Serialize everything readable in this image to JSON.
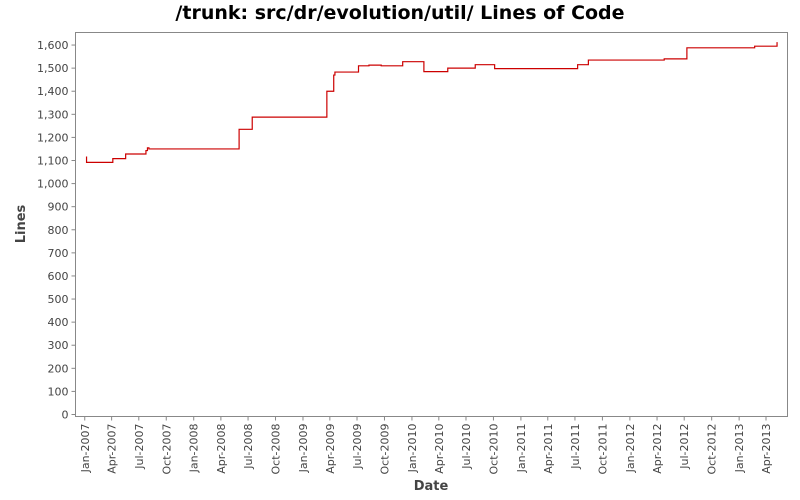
{
  "chart_data": {
    "type": "line",
    "title": "/trunk: src/dr/evolution/util/ Lines of Code",
    "xlabel": "Date",
    "ylabel": "Lines",
    "ylim": [
      0,
      1650
    ],
    "xlim": [
      "2006-12-01",
      "2013-06-12"
    ],
    "y_ticks": [
      0,
      100,
      200,
      300,
      400,
      500,
      600,
      700,
      800,
      900,
      1000,
      1100,
      1200,
      1300,
      1400,
      1500,
      1600
    ],
    "y_tick_labels": [
      "0",
      "100",
      "200",
      "300",
      "400",
      "500",
      "600",
      "700",
      "800",
      "900",
      "1,000",
      "1,100",
      "1,200",
      "1,300",
      "1,400",
      "1,500",
      "1,600"
    ],
    "x_ticks": [
      {
        "date": "2007-01-01",
        "label": "Jan-2007"
      },
      {
        "date": "2007-04-01",
        "label": "Apr-2007"
      },
      {
        "date": "2007-07-01",
        "label": "Jul-2007"
      },
      {
        "date": "2007-10-01",
        "label": "Oct-2007"
      },
      {
        "date": "2008-01-01",
        "label": "Jan-2008"
      },
      {
        "date": "2008-04-01",
        "label": "Apr-2008"
      },
      {
        "date": "2008-07-01",
        "label": "Jul-2008"
      },
      {
        "date": "2008-10-01",
        "label": "Oct-2008"
      },
      {
        "date": "2009-01-01",
        "label": "Jan-2009"
      },
      {
        "date": "2009-04-01",
        "label": "Apr-2009"
      },
      {
        "date": "2009-07-01",
        "label": "Jul-2009"
      },
      {
        "date": "2009-10-01",
        "label": "Oct-2009"
      },
      {
        "date": "2010-01-01",
        "label": "Jan-2010"
      },
      {
        "date": "2010-04-01",
        "label": "Apr-2010"
      },
      {
        "date": "2010-07-01",
        "label": "Jul-2010"
      },
      {
        "date": "2010-10-01",
        "label": "Oct-2010"
      },
      {
        "date": "2011-01-01",
        "label": "Jan-2011"
      },
      {
        "date": "2011-04-01",
        "label": "Apr-2011"
      },
      {
        "date": "2011-07-01",
        "label": "Jul-2011"
      },
      {
        "date": "2011-10-01",
        "label": "Oct-2011"
      },
      {
        "date": "2012-01-01",
        "label": "Jan-2012"
      },
      {
        "date": "2012-04-01",
        "label": "Apr-2012"
      },
      {
        "date": "2012-07-01",
        "label": "Jul-2012"
      },
      {
        "date": "2012-10-01",
        "label": "Oct-2012"
      },
      {
        "date": "2013-01-01",
        "label": "Jan-2013"
      },
      {
        "date": "2013-04-01",
        "label": "Apr-2013"
      }
    ],
    "grid": false,
    "line_style": "step",
    "series": [
      {
        "color": "#cc0000",
        "points": [
          {
            "x": "2007-01-05",
            "y": 1115
          },
          {
            "x": "2007-01-07",
            "y": 1092
          },
          {
            "x": "2007-04-05",
            "y": 1108
          },
          {
            "x": "2007-05-18",
            "y": 1128
          },
          {
            "x": "2007-07-25",
            "y": 1143
          },
          {
            "x": "2007-07-30",
            "y": 1155
          },
          {
            "x": "2007-08-04",
            "y": 1150
          },
          {
            "x": "2008-06-01",
            "y": 1235
          },
          {
            "x": "2008-07-15",
            "y": 1288
          },
          {
            "x": "2009-03-22",
            "y": 1400
          },
          {
            "x": "2009-04-14",
            "y": 1470
          },
          {
            "x": "2009-04-18",
            "y": 1483
          },
          {
            "x": "2009-07-06",
            "y": 1510
          },
          {
            "x": "2009-08-10",
            "y": 1513
          },
          {
            "x": "2009-09-20",
            "y": 1510
          },
          {
            "x": "2009-12-01",
            "y": 1528
          },
          {
            "x": "2010-02-10",
            "y": 1485
          },
          {
            "x": "2010-05-01",
            "y": 1500
          },
          {
            "x": "2010-08-01",
            "y": 1515
          },
          {
            "x": "2010-10-05",
            "y": 1498
          },
          {
            "x": "2011-07-10",
            "y": 1515
          },
          {
            "x": "2011-08-15",
            "y": 1535
          },
          {
            "x": "2012-04-25",
            "y": 1540
          },
          {
            "x": "2012-07-10",
            "y": 1588
          },
          {
            "x": "2013-02-22",
            "y": 1595
          },
          {
            "x": "2013-05-08",
            "y": 1610
          }
        ],
        "end": "2013-05-10"
      }
    ]
  }
}
